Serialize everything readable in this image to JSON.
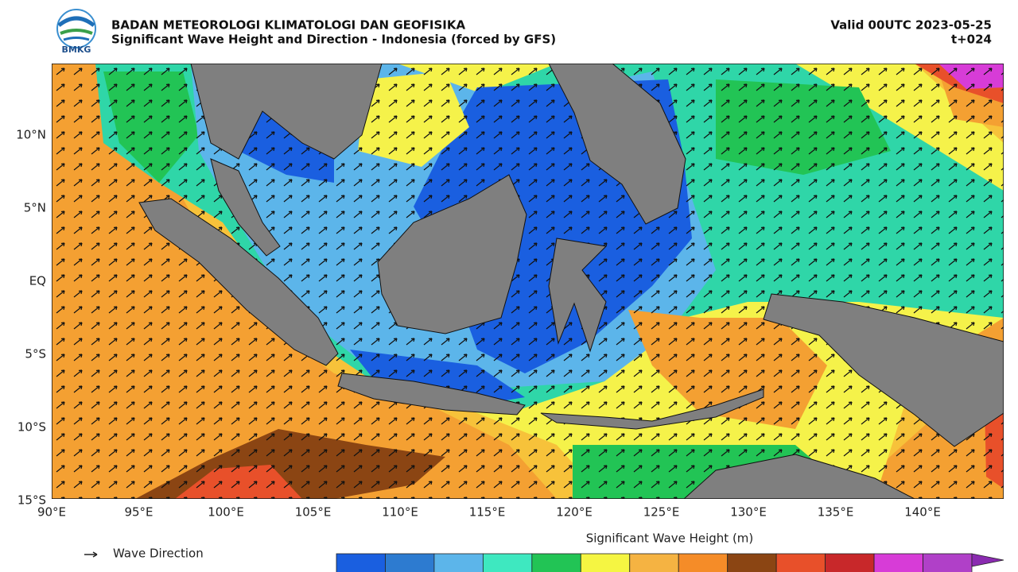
{
  "header": {
    "logo_text": "BMKG",
    "title": "BADAN METEOROLOGI KLIMATOLOGI DAN GEOFISIKA",
    "subtitle": "Significant Wave Height and Direction - Indonesia (forced by GFS)",
    "valid": "Valid 00UTC 2023-05-25",
    "lead": "t+024"
  },
  "map": {
    "lat_labels": [
      "10°N",
      "5°N",
      "EQ",
      "5°S",
      "10°S",
      "15°S"
    ],
    "lon_labels": [
      "90°E",
      "95°E",
      "100°E",
      "105°E",
      "110°E",
      "115°E",
      "120°E",
      "125°E",
      "130°E",
      "135°E",
      "140°E"
    ]
  },
  "legend": {
    "wave_direction": "Wave Direction"
  },
  "colorbar": {
    "title": "Significant Wave Height (m)",
    "colors": [
      "#1a5fe0",
      "#2d7bd0",
      "#5cb5ea",
      "#3ee8c0",
      "#22c455",
      "#f5f542",
      "#f5b342",
      "#f58c28",
      "#8b4513",
      "#e8502a",
      "#c8282a",
      "#d73cd7",
      "#b040c8",
      "#8a2bb0"
    ]
  }
}
